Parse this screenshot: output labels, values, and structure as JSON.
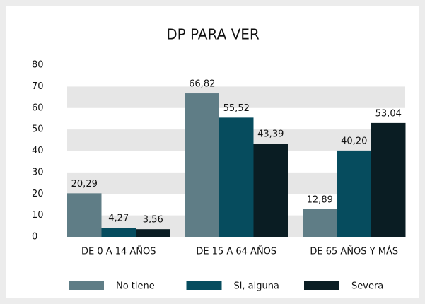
{
  "chart_data": {
    "type": "bar",
    "title": "DP PARA VER",
    "categories": [
      "DE 0 A 14 AÑOS",
      "DE 15 A 64 AÑOS",
      "DE 65 AÑOS Y MÁS"
    ],
    "series": [
      {
        "name": "No tiene",
        "color": "#5f7d86",
        "values": [
          20.29,
          66.82,
          12.89
        ],
        "value_labels": [
          "20,29",
          "66,82",
          "12,89"
        ]
      },
      {
        "name": "Si, alguna",
        "color": "#064c5e",
        "values": [
          4.27,
          55.52,
          40.2
        ],
        "value_labels": [
          "4,27",
          "55,52",
          "40,20"
        ]
      },
      {
        "name": "Severa",
        "color": "#0a1d23",
        "values": [
          3.56,
          43.39,
          53.04
        ],
        "value_labels": [
          "3,56",
          "43,39",
          "53,04"
        ]
      }
    ],
    "ylim": [
      0,
      80
    ],
    "yticks": [
      0,
      10,
      20,
      30,
      40,
      50,
      60,
      70,
      80
    ],
    "grid": true,
    "legend": "bottom"
  }
}
